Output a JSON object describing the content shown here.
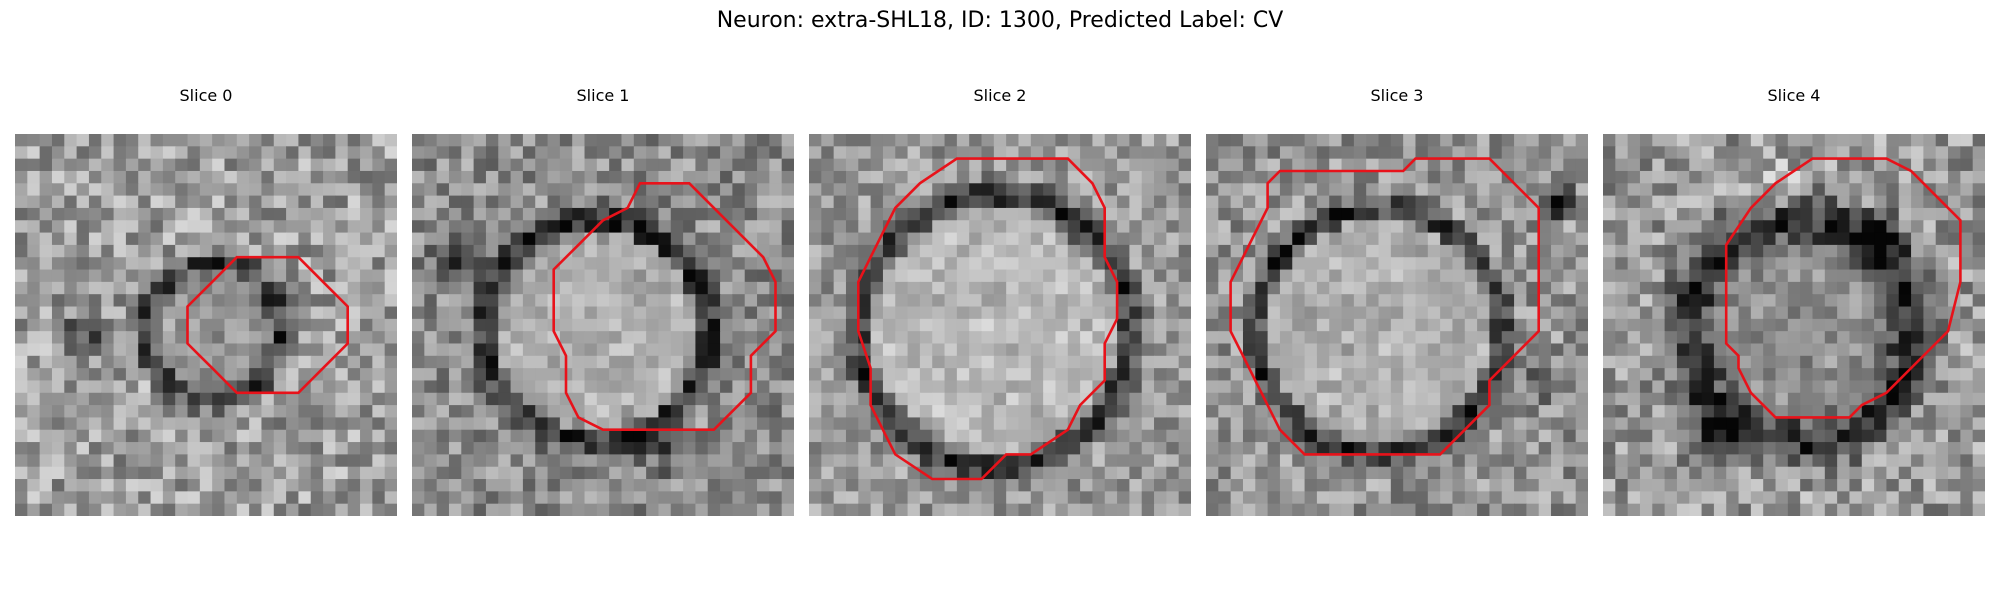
{
  "figure": {
    "title": "Neuron: extra-SHL18, ID: 1300, Predicted Label: CV"
  },
  "panels": [
    {
      "title": "Slice 0"
    },
    {
      "title": "Slice 1"
    },
    {
      "title": "Slice 2"
    },
    {
      "title": "Slice 3"
    },
    {
      "title": "Slice 4"
    }
  ],
  "style": {
    "contour_color": "#e8121a",
    "colormap": "grayscale"
  }
}
